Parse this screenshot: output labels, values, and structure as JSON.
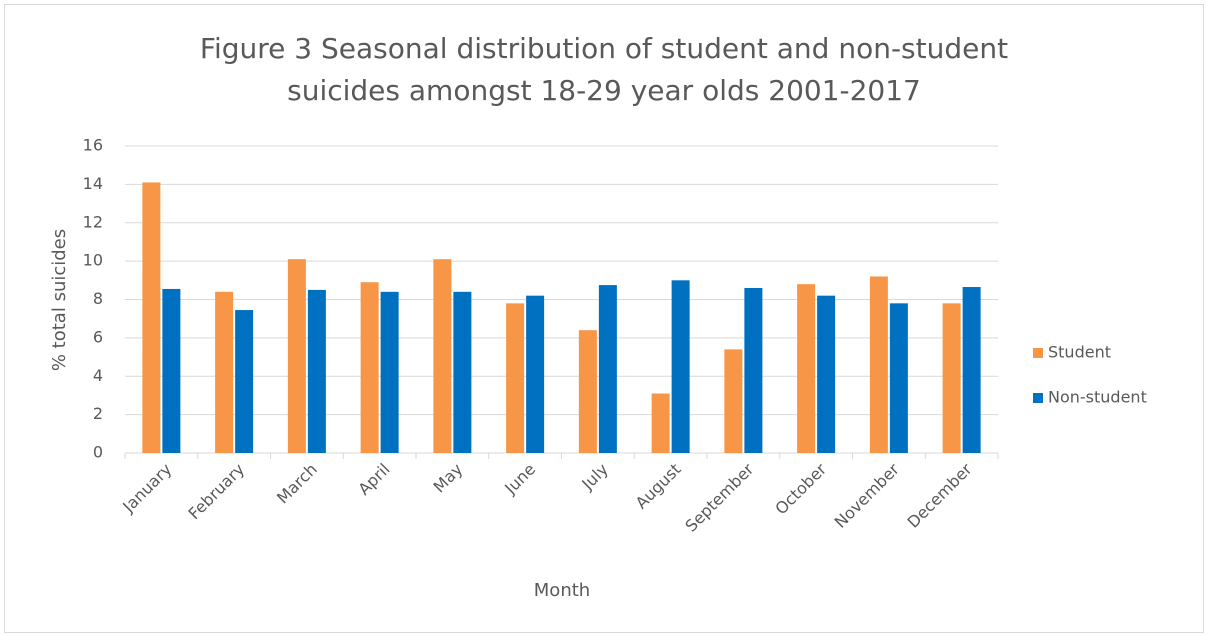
{
  "chart_data": {
    "type": "bar",
    "title": "Figure 3 Seasonal distribution of student and non-student suicides amongst 18-29 year olds 2001-2017",
    "x_label": "Month",
    "y_label": "% total suicides",
    "categories": [
      "January",
      "February",
      "March",
      "April",
      "May",
      "June",
      "July",
      "August",
      "September",
      "October",
      "November",
      "December"
    ],
    "series": [
      {
        "name": "Student",
        "color": "#f79646",
        "values": [
          14.1,
          8.4,
          10.1,
          8.9,
          10.1,
          7.8,
          6.4,
          3.1,
          5.4,
          8.8,
          9.2,
          7.8
        ]
      },
      {
        "name": "Non-student",
        "color": "#0070c0",
        "values": [
          8.55,
          7.45,
          8.5,
          8.4,
          8.4,
          8.2,
          8.75,
          9.0,
          8.6,
          8.2,
          7.8,
          8.65
        ]
      }
    ],
    "ylim": [
      0,
      16
    ],
    "yticks": [
      0,
      2,
      4,
      6,
      8,
      10,
      12,
      14,
      16
    ],
    "grid": true,
    "legend": "right"
  }
}
